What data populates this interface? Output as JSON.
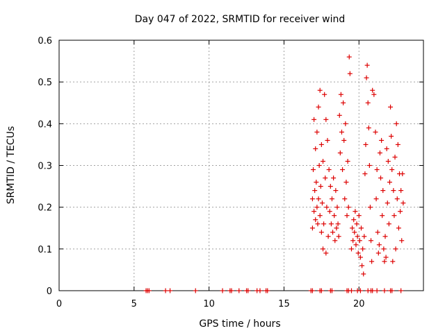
{
  "chart_data": {
    "type": "scatter",
    "title": "Day 047 of 2022, SRMTID for receiver wind",
    "xlabel": "GPS time / hours",
    "ylabel": "SRMTID / TECUs",
    "xlim": [
      0,
      24.3
    ],
    "ylim": [
      0,
      0.6
    ],
    "xticks": [
      0,
      5,
      10,
      15,
      20
    ],
    "xtick_labels": [
      "0",
      "5",
      "10",
      "15",
      "20"
    ],
    "yticks": [
      0,
      0.1,
      0.2,
      0.3,
      0.4,
      0.5,
      0.6
    ],
    "ytick_labels": [
      "0",
      "0.1",
      "0.2",
      "0.3",
      "0.4",
      "0.5",
      "0.6"
    ],
    "grid": true,
    "marker": "+",
    "color": "#dd0000",
    "series": [
      {
        "name": "SRMTID",
        "points": [
          [
            5.8,
            0
          ],
          [
            5.9,
            0
          ],
          [
            6.0,
            0
          ],
          [
            7.1,
            0
          ],
          [
            7.4,
            0
          ],
          [
            9.1,
            0
          ],
          [
            10.9,
            0
          ],
          [
            11.4,
            0
          ],
          [
            11.5,
            0
          ],
          [
            12.0,
            0
          ],
          [
            12.5,
            0
          ],
          [
            12.6,
            0
          ],
          [
            13.2,
            0
          ],
          [
            13.4,
            0
          ],
          [
            13.8,
            0
          ],
          [
            13.9,
            0
          ],
          [
            16.8,
            0
          ],
          [
            16.9,
            0
          ],
          [
            17.4,
            0
          ],
          [
            17.5,
            0
          ],
          [
            18.1,
            0
          ],
          [
            18.2,
            0
          ],
          [
            19.2,
            0
          ],
          [
            19.3,
            0
          ],
          [
            19.5,
            0
          ],
          [
            19.9,
            0
          ],
          [
            20.1,
            0
          ],
          [
            20.6,
            0
          ],
          [
            20.8,
            0
          ],
          [
            20.9,
            0
          ],
          [
            21.2,
            0
          ],
          [
            21.7,
            0
          ],
          [
            22.1,
            0
          ],
          [
            22.2,
            0
          ],
          [
            22.8,
            0
          ],
          [
            16.9,
            0.15
          ],
          [
            16.9,
            0.22
          ],
          [
            16.95,
            0.29
          ],
          [
            17.0,
            0.19
          ],
          [
            17.0,
            0.41
          ],
          [
            17.05,
            0.24
          ],
          [
            17.1,
            0.17
          ],
          [
            17.1,
            0.34
          ],
          [
            17.15,
            0.26
          ],
          [
            17.2,
            0.2
          ],
          [
            17.2,
            0.38
          ],
          [
            17.25,
            0.16
          ],
          [
            17.3,
            0.22
          ],
          [
            17.3,
            0.44
          ],
          [
            17.35,
            0.3
          ],
          [
            17.4,
            0.18
          ],
          [
            17.4,
            0.48
          ],
          [
            17.45,
            0.25
          ],
          [
            17.5,
            0.14
          ],
          [
            17.5,
            0.35
          ],
          [
            17.55,
            0.21
          ],
          [
            17.6,
            0.1
          ],
          [
            17.6,
            0.31
          ],
          [
            17.65,
            0.16
          ],
          [
            17.7,
            0.47
          ],
          [
            17.75,
            0.27
          ],
          [
            17.8,
            0.09
          ],
          [
            17.8,
            0.41
          ],
          [
            17.85,
            0.2
          ],
          [
            17.9,
            0.36
          ],
          [
            17.95,
            0.13
          ],
          [
            18.0,
            0.29
          ],
          [
            18.05,
            0.19
          ],
          [
            18.1,
            0.25
          ],
          [
            18.15,
            0.16
          ],
          [
            18.2,
            0.22
          ],
          [
            18.25,
            0.14
          ],
          [
            18.3,
            0.27
          ],
          [
            18.35,
            0.18
          ],
          [
            18.4,
            0.12
          ],
          [
            18.45,
            0.24
          ],
          [
            18.5,
            0.15
          ],
          [
            18.55,
            0.2
          ],
          [
            18.6,
            0.16
          ],
          [
            18.65,
            0.13
          ],
          [
            18.7,
            0.42
          ],
          [
            18.75,
            0.33
          ],
          [
            18.8,
            0.47
          ],
          [
            18.85,
            0.38
          ],
          [
            18.9,
            0.29
          ],
          [
            18.95,
            0.45
          ],
          [
            19.0,
            0.36
          ],
          [
            19.05,
            0.22
          ],
          [
            19.1,
            0.4
          ],
          [
            19.15,
            0.26
          ],
          [
            19.2,
            0.18
          ],
          [
            19.25,
            0.31
          ],
          [
            19.3,
            0.2
          ],
          [
            19.35,
            0.56
          ],
          [
            19.4,
            0.52
          ],
          [
            19.5,
            0.1
          ],
          [
            19.55,
            0.15
          ],
          [
            19.6,
            0.12
          ],
          [
            19.65,
            0.17
          ],
          [
            19.7,
            0.14
          ],
          [
            19.75,
            0.19
          ],
          [
            19.8,
            0.11
          ],
          [
            19.85,
            0.16
          ],
          [
            19.9,
            0.13
          ],
          [
            19.95,
            0.09
          ],
          [
            20.0,
            0.18
          ],
          [
            20.05,
            0.12
          ],
          [
            20.1,
            0.08
          ],
          [
            20.15,
            0.15
          ],
          [
            20.2,
            0.06
          ],
          [
            20.25,
            0.1
          ],
          [
            20.3,
            0.04
          ],
          [
            20.35,
            0.13
          ],
          [
            20.4,
            0.28
          ],
          [
            20.45,
            0.35
          ],
          [
            20.5,
            0.51
          ],
          [
            20.55,
            0.54
          ],
          [
            20.6,
            0.45
          ],
          [
            20.65,
            0.39
          ],
          [
            20.7,
            0.3
          ],
          [
            20.75,
            0.2
          ],
          [
            20.8,
            0.12
          ],
          [
            20.85,
            0.07
          ],
          [
            20.9,
            0.48
          ],
          [
            21.0,
            0.47
          ],
          [
            21.1,
            0.38
          ],
          [
            21.15,
            0.22
          ],
          [
            21.2,
            0.29
          ],
          [
            21.25,
            0.14
          ],
          [
            21.3,
            0.09
          ],
          [
            21.35,
            0.11
          ],
          [
            21.4,
            0.33
          ],
          [
            21.45,
            0.27
          ],
          [
            21.5,
            0.36
          ],
          [
            21.55,
            0.18
          ],
          [
            21.6,
            0.24
          ],
          [
            21.65,
            0.1
          ],
          [
            21.7,
            0.07
          ],
          [
            21.75,
            0.13
          ],
          [
            21.8,
            0.08
          ],
          [
            21.85,
            0.34
          ],
          [
            21.9,
            0.21
          ],
          [
            21.95,
            0.31
          ],
          [
            22.0,
            0.16
          ],
          [
            22.05,
            0.26
          ],
          [
            22.1,
            0.44
          ],
          [
            22.15,
            0.37
          ],
          [
            22.2,
            0.29
          ],
          [
            22.25,
            0.07
          ],
          [
            22.3,
            0.24
          ],
          [
            22.35,
            0.18
          ],
          [
            22.4,
            0.32
          ],
          [
            22.45,
            0.1
          ],
          [
            22.5,
            0.4
          ],
          [
            22.55,
            0.22
          ],
          [
            22.6,
            0.35
          ],
          [
            22.65,
            0.15
          ],
          [
            22.7,
            0.28
          ],
          [
            22.75,
            0.19
          ],
          [
            22.8,
            0.24
          ],
          [
            22.85,
            0.12
          ],
          [
            22.9,
            0.28
          ],
          [
            22.95,
            0.21
          ]
        ]
      }
    ]
  }
}
